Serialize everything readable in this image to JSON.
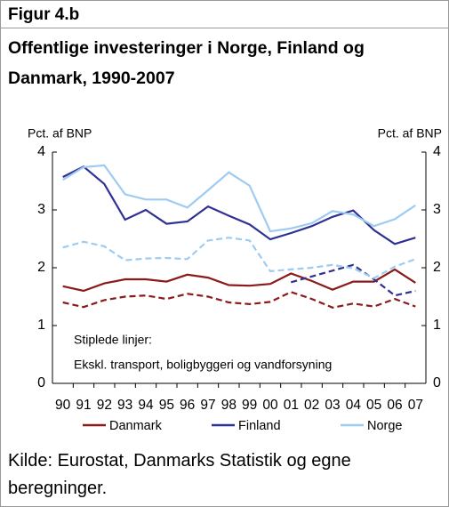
{
  "figure_label": "Figur 4.b",
  "source": "Kilde: Eurostat, Danmarks Statistik og egne beregninger.",
  "chart_data": {
    "type": "line",
    "title": "Offentlige investeringer i Norge, Finland og Danmark, 1990-2007",
    "y_label": "Pct. af BNP",
    "y2_label": "Pct. af BNP",
    "annotations": [
      "Stiplede linjer:",
      "Ekskl. transport, boligbyggeri og vandforsyning"
    ],
    "categories": [
      "90",
      "91",
      "92",
      "93",
      "94",
      "95",
      "96",
      "97",
      "98",
      "99",
      "00",
      "01",
      "02",
      "03",
      "04",
      "05",
      "06",
      "07"
    ],
    "ylim": [
      0,
      4
    ],
    "yticks": [
      0,
      1,
      2,
      3,
      4
    ],
    "y2lim": [
      0,
      4
    ],
    "y2ticks": [
      0,
      1,
      2,
      3,
      4
    ],
    "series": [
      {
        "name": "Danmark",
        "color": "#8b1a1a",
        "dashed": false,
        "values": [
          1.68,
          1.6,
          1.73,
          1.8,
          1.8,
          1.76,
          1.88,
          1.83,
          1.7,
          1.69,
          1.72,
          1.9,
          1.77,
          1.62,
          1.76,
          1.76,
          1.97,
          1.74
        ]
      },
      {
        "name": "Finland",
        "color": "#2e3192",
        "dashed": false,
        "values": [
          3.57,
          3.75,
          3.45,
          2.83,
          3.0,
          2.76,
          2.8,
          3.06,
          2.9,
          2.75,
          2.49,
          2.6,
          2.72,
          2.88,
          2.99,
          2.65,
          2.41,
          2.52
        ]
      },
      {
        "name": "Norge",
        "color": "#9ecbf0",
        "dashed": false,
        "values": [
          3.52,
          3.74,
          3.77,
          3.27,
          3.18,
          3.18,
          3.04,
          3.34,
          3.65,
          3.42,
          2.63,
          2.68,
          2.77,
          2.98,
          2.92,
          2.72,
          2.84,
          3.08
        ]
      },
      {
        "color": "#8b1a1a",
        "dashed": true,
        "values": [
          1.4,
          1.32,
          1.44,
          1.5,
          1.52,
          1.46,
          1.55,
          1.5,
          1.4,
          1.37,
          1.41,
          1.58,
          1.46,
          1.31,
          1.38,
          1.33,
          1.46,
          1.33
        ]
      },
      {
        "color": "#2e3192",
        "dashed": true,
        "values": [
          null,
          null,
          null,
          null,
          null,
          null,
          null,
          null,
          null,
          null,
          null,
          1.75,
          1.85,
          1.95,
          2.05,
          1.8,
          1.52,
          1.6
        ]
      },
      {
        "color": "#9ecbf0",
        "dashed": true,
        "values": [
          2.35,
          2.45,
          2.37,
          2.13,
          2.16,
          2.17,
          2.15,
          2.47,
          2.52,
          2.47,
          1.94,
          1.97,
          2.0,
          2.05,
          1.99,
          1.82,
          2.02,
          2.15
        ]
      }
    ]
  }
}
